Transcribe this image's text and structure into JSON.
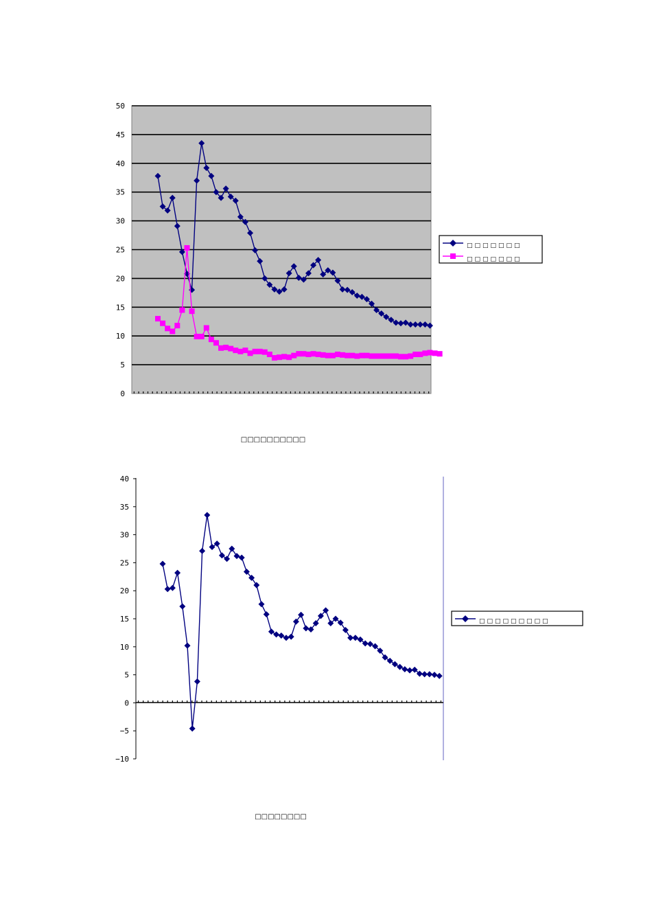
{
  "chart_data": [
    {
      "type": "line",
      "title": "",
      "caption": "□□□□□□□□□□",
      "xlabel": "",
      "ylabel": "",
      "ylim": [
        0,
        50
      ],
      "yticks": [
        "0",
        "5",
        "10",
        "15",
        "20",
        "25",
        "30",
        "35",
        "40",
        "45",
        "50"
      ],
      "grid": true,
      "background": "#c0c0c0",
      "legend_position": "right",
      "series": [
        {
          "name": "□□□□□□□",
          "color": "#000080",
          "marker": "diamond",
          "values": [
            37.8,
            32.5,
            31.8,
            34.0,
            29.1,
            24.6,
            20.8,
            18.0,
            37.0,
            43.5,
            39.2,
            37.8,
            35.0,
            34.0,
            35.6,
            34.2,
            33.5,
            30.7,
            29.8,
            27.9,
            24.9,
            23.0,
            20.0,
            18.9,
            18.1,
            17.7,
            18.1,
            20.9,
            22.1,
            20.1,
            19.8,
            20.9,
            22.3,
            23.2,
            20.7,
            21.4,
            21.0,
            19.6,
            18.1,
            18.0,
            17.6,
            17.0,
            16.8,
            16.4,
            15.6,
            14.5,
            13.9,
            13.3,
            12.8,
            12.3,
            12.2,
            12.3,
            12.0,
            12.0,
            12.0,
            12.0,
            11.8
          ]
        },
        {
          "name": "□□□□□□□",
          "color": "#ff00ff",
          "marker": "square",
          "values": [
            13.0,
            12.2,
            11.3,
            10.8,
            11.8,
            14.5,
            25.3,
            14.3,
            9.9,
            9.9,
            11.4,
            9.4,
            8.8,
            7.9,
            8.0,
            7.8,
            7.5,
            7.3,
            7.5,
            7.0,
            7.3,
            7.3,
            7.2,
            6.8,
            6.2,
            6.3,
            6.4,
            6.3,
            6.6,
            6.9,
            6.9,
            6.8,
            6.9,
            6.8,
            6.7,
            6.6,
            6.6,
            6.8,
            6.7,
            6.6,
            6.6,
            6.5,
            6.6,
            6.6,
            6.5,
            6.5,
            6.5,
            6.5,
            6.5,
            6.5,
            6.4,
            6.4,
            6.5,
            6.8,
            6.8,
            7.0,
            7.1,
            7.0,
            6.9
          ]
        }
      ]
    },
    {
      "type": "line",
      "title": "",
      "caption": "□□□□□□□□",
      "xlabel": "",
      "ylabel": "",
      "ylim": [
        -10,
        40
      ],
      "yticks": [
        "−10",
        "−5",
        "0",
        "5",
        "10",
        "15",
        "20",
        "25",
        "30",
        "35",
        "40"
      ],
      "grid": false,
      "background": "#ffffff",
      "legend_position": "right",
      "series": [
        {
          "name": "□□□□□□□□□",
          "color": "#000080",
          "marker": "diamond",
          "values": [
            24.8,
            20.3,
            20.5,
            23.2,
            17.2,
            10.2,
            -4.6,
            3.8,
            27.1,
            33.5,
            27.8,
            28.4,
            26.3,
            25.7,
            27.5,
            26.2,
            25.9,
            23.4,
            22.3,
            21.0,
            17.6,
            15.8,
            12.7,
            12.2,
            12.0,
            11.6,
            11.8,
            14.5,
            15.7,
            13.3,
            13.1,
            14.2,
            15.5,
            16.5,
            14.2,
            15.0,
            14.3,
            13.0,
            11.6,
            11.6,
            11.3,
            10.6,
            10.5,
            10.1,
            9.3,
            8.1,
            7.5,
            6.9,
            6.4,
            6.0,
            5.8,
            5.9,
            5.2,
            5.1,
            5.1,
            5.0,
            4.8
          ]
        }
      ]
    }
  ]
}
